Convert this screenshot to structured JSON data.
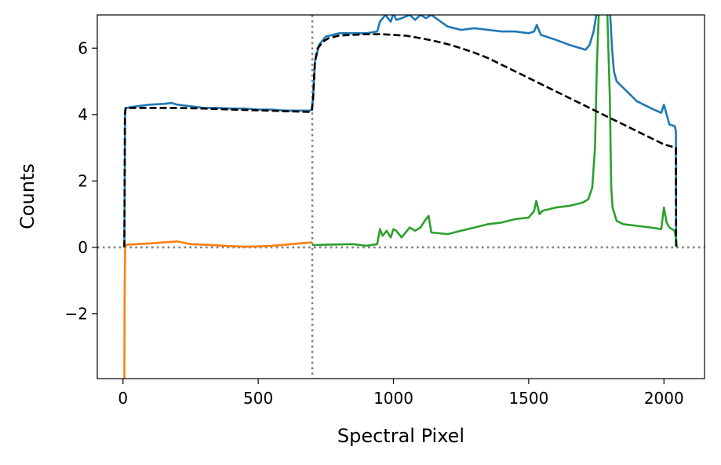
{
  "chart_data": {
    "type": "line",
    "title": "",
    "xlabel": "Spectral Pixel",
    "ylabel": "Counts",
    "xlim": [
      -95,
      2150
    ],
    "ylim": [
      -3.95,
      7.0
    ],
    "xticks": [
      0,
      500,
      1000,
      1500,
      2000
    ],
    "xtick_labels": [
      "0",
      "500",
      "1000",
      "1500",
      "2000"
    ],
    "yticks": [
      -2,
      0,
      2,
      4,
      6
    ],
    "ytick_labels": [
      "−2",
      "0",
      "2",
      "4",
      "6"
    ],
    "grid": false,
    "legend": "none",
    "reference_lines": [
      {
        "orientation": "horizontal",
        "value": 0,
        "style": "dotted",
        "color": "#808080"
      },
      {
        "orientation": "vertical",
        "value": 700,
        "style": "dotted",
        "color": "#808080"
      }
    ],
    "series": [
      {
        "color": "#1f77b4",
        "style": "solid",
        "x": [
          5,
          8,
          12,
          50,
          100,
          150,
          180,
          200,
          250,
          300,
          350,
          400,
          450,
          500,
          550,
          600,
          650,
          690,
          698,
          703,
          710,
          725,
          750,
          800,
          850,
          900,
          940,
          950,
          970,
          990,
          1000,
          1010,
          1030,
          1060,
          1080,
          1100,
          1120,
          1140,
          1200,
          1250,
          1300,
          1350,
          1400,
          1450,
          1500,
          1520,
          1530,
          1545,
          1600,
          1650,
          1690,
          1710,
          1725,
          1740,
          1750,
          1755,
          1800,
          1808,
          1815,
          1825,
          1850,
          1900,
          1950,
          1990,
          2000,
          2010,
          2020,
          2040,
          2044,
          2045
        ],
        "y": [
          0.0,
          4.15,
          4.2,
          4.25,
          4.3,
          4.32,
          4.35,
          4.3,
          4.25,
          4.2,
          4.2,
          4.18,
          4.18,
          4.15,
          4.15,
          4.12,
          4.12,
          4.12,
          4.15,
          4.5,
          5.6,
          6.1,
          6.35,
          6.45,
          6.45,
          6.45,
          6.5,
          6.8,
          7.0,
          6.8,
          7.05,
          6.85,
          6.9,
          7.0,
          6.85,
          7.0,
          6.9,
          7.0,
          6.65,
          6.55,
          6.6,
          6.55,
          6.5,
          6.5,
          6.45,
          6.5,
          6.7,
          6.4,
          6.25,
          6.1,
          6.0,
          5.95,
          6.1,
          6.5,
          7.0,
          7.2,
          7.2,
          6.0,
          5.3,
          5.0,
          4.8,
          4.4,
          4.2,
          4.05,
          4.3,
          4.0,
          3.7,
          3.65,
          3.5,
          0.05
        ]
      },
      {
        "color": "#ff7f0e",
        "style": "solid",
        "x": [
          5,
          6,
          8,
          10,
          15,
          50,
          100,
          150,
          200,
          250,
          300,
          350,
          400,
          450,
          500,
          550,
          600,
          650,
          700
        ],
        "y": [
          -3.95,
          -1.5,
          0.0,
          0.05,
          0.08,
          0.1,
          0.12,
          0.15,
          0.18,
          0.1,
          0.08,
          0.06,
          0.04,
          0.02,
          0.03,
          0.05,
          0.08,
          0.12,
          0.15
        ]
      },
      {
        "color": "#2ca02c",
        "style": "solid",
        "x": [
          700,
          750,
          800,
          850,
          900,
          940,
          950,
          960,
          975,
          990,
          1000,
          1010,
          1030,
          1060,
          1080,
          1100,
          1120,
          1130,
          1140,
          1200,
          1250,
          1300,
          1350,
          1400,
          1450,
          1500,
          1520,
          1528,
          1540,
          1550,
          1600,
          1650,
          1700,
          1720,
          1735,
          1745,
          1752,
          1760,
          1790,
          1800,
          1805,
          1810,
          1825,
          1850,
          1900,
          1950,
          1990,
          2000,
          2010,
          2020,
          2040,
          2048
        ],
        "y": [
          0.07,
          0.08,
          0.09,
          0.1,
          0.05,
          0.1,
          0.55,
          0.35,
          0.5,
          0.3,
          0.55,
          0.5,
          0.3,
          0.6,
          0.5,
          0.6,
          0.85,
          0.95,
          0.45,
          0.4,
          0.5,
          0.6,
          0.7,
          0.75,
          0.85,
          0.9,
          1.1,
          1.4,
          1.0,
          1.1,
          1.2,
          1.25,
          1.35,
          1.45,
          1.8,
          3.0,
          5.5,
          7.2,
          7.2,
          4.5,
          1.8,
          1.2,
          0.8,
          0.7,
          0.65,
          0.6,
          0.55,
          1.2,
          0.75,
          0.6,
          0.5,
          0.0
        ]
      },
      {
        "color": "#000000",
        "style": "dashed",
        "x": [
          5,
          7,
          10,
          100,
          200,
          300,
          400,
          500,
          600,
          690,
          698,
          703,
          710,
          720,
          740,
          760,
          800,
          850,
          900,
          950,
          1000,
          1050,
          1100,
          1150,
          1200,
          1250,
          1300,
          1350,
          1400,
          1450,
          1500,
          1550,
          1600,
          1650,
          1700,
          1750,
          1800,
          1850,
          1900,
          1950,
          2000,
          2044,
          2045
        ],
        "y": [
          0.0,
          4.0,
          4.2,
          4.2,
          4.2,
          4.18,
          4.15,
          4.13,
          4.1,
          4.08,
          4.1,
          4.5,
          5.6,
          6.0,
          6.2,
          6.3,
          6.38,
          6.4,
          6.42,
          6.42,
          6.4,
          6.37,
          6.3,
          6.22,
          6.12,
          6.0,
          5.86,
          5.7,
          5.5,
          5.3,
          5.1,
          4.9,
          4.7,
          4.5,
          4.3,
          4.1,
          3.9,
          3.7,
          3.5,
          3.3,
          3.1,
          3.0,
          0.0
        ]
      }
    ]
  }
}
